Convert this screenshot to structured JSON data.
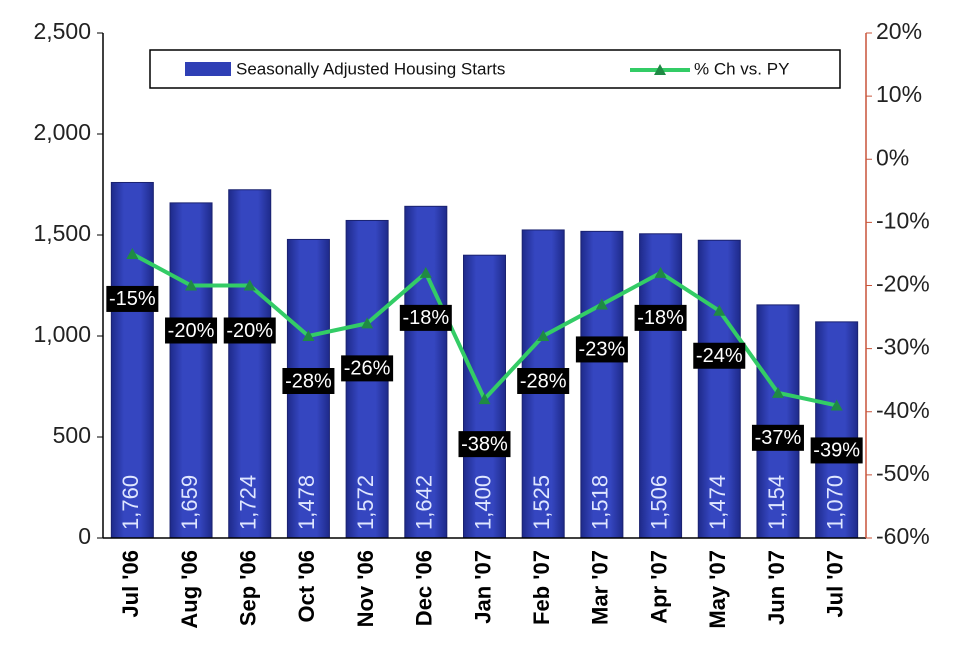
{
  "chart_data": {
    "type": "bar",
    "categories": [
      "Jul '06",
      "Aug '06",
      "Sep '06",
      "Oct '06",
      "Nov '06",
      "Dec '06",
      "Jan '07",
      "Feb '07",
      "Mar '07",
      "Apr '07",
      "May '07",
      "Jun '07",
      "Jul '07"
    ],
    "series": [
      {
        "name": "Seasonally Adjusted Housing Starts",
        "type": "bar",
        "color": "#2f3fb5",
        "values": [
          1760,
          1659,
          1724,
          1478,
          1572,
          1642,
          1400,
          1525,
          1518,
          1506,
          1474,
          1154,
          1070
        ],
        "value_labels": [
          "1,760",
          "1,659",
          "1,724",
          "1,478",
          "1,572",
          "1,642",
          "1,400",
          "1,525",
          "1,518",
          "1,506",
          "1,474",
          "1,154",
          "1,070"
        ]
      },
      {
        "name": "% Ch vs. PY",
        "type": "line",
        "axis": "y2",
        "color": "#33cc66",
        "values": [
          -15,
          -20,
          -20,
          -28,
          -26,
          -18,
          -38,
          -28,
          -23,
          -18,
          -24,
          -37,
          -39
        ],
        "value_labels": [
          "-15%",
          "-20%",
          "-20%",
          "-28%",
          "-26%",
          "-18%",
          "-38%",
          "-28%",
          "-23%",
          "-18%",
          "-24%",
          "-37%",
          "-39%"
        ]
      }
    ],
    "ylim": [
      0,
      2500
    ],
    "yticks": [
      0,
      500,
      {
        "value": 1000,
        "label": "1,000"
      },
      {
        "value": 1500,
        "label": "1,500"
      },
      {
        "value": 2000,
        "label": "2,000"
      },
      {
        "value": 2500,
        "label": "2,500"
      }
    ],
    "y2lim": [
      -60,
      20
    ],
    "y2ticks": [
      {
        "value": -60,
        "label": "-60%"
      },
      {
        "value": -50,
        "label": "-50%"
      },
      {
        "value": -40,
        "label": "-40%"
      },
      {
        "value": -30,
        "label": "-30%"
      },
      {
        "value": -20,
        "label": "-20%"
      },
      {
        "value": -10,
        "label": "-10%"
      },
      {
        "value": 0,
        "label": "0%"
      },
      {
        "value": 10,
        "label": "10%"
      },
      {
        "value": 20,
        "label": "20%"
      }
    ],
    "legend": "top"
  }
}
